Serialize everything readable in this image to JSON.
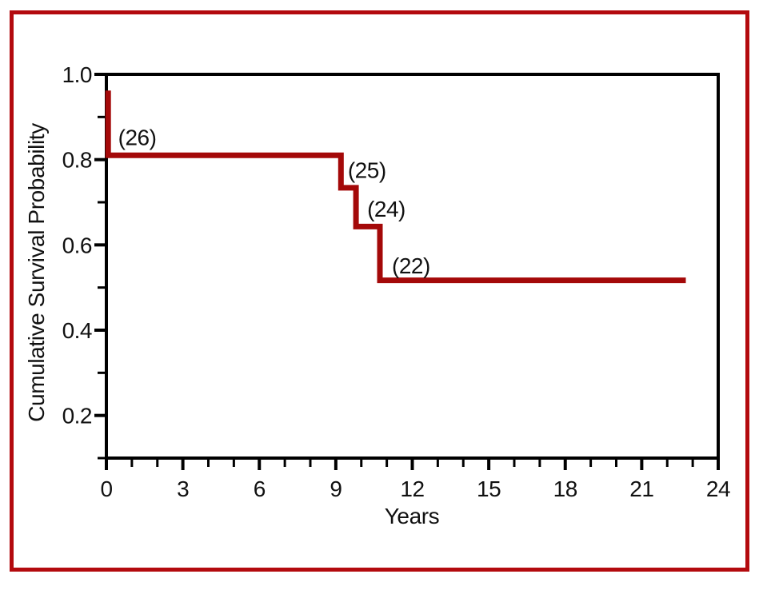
{
  "figure": {
    "background": "#ffffff",
    "border_color": "#b30a0e"
  },
  "chart_data": {
    "type": "line",
    "style": "kaplan-meier-step",
    "title": "",
    "xlabel": "Years",
    "ylabel": "Cumulative Survival Probability",
    "xlim": [
      0,
      24
    ],
    "ylim": [
      0.1,
      1.0
    ],
    "x_ticks_major": [
      0,
      3,
      6,
      9,
      12,
      15,
      18,
      21,
      24
    ],
    "x_ticks_minor": [
      1,
      2,
      4,
      5,
      7,
      8,
      10,
      11,
      13,
      14,
      16,
      17,
      19,
      20,
      22,
      23
    ],
    "y_ticks_major": [
      {
        "value": 1.0,
        "label": "1.0"
      },
      {
        "value": 0.8,
        "label": "0.8"
      },
      {
        "value": 0.6,
        "label": "0.6"
      },
      {
        "value": 0.4,
        "label": "0.4"
      },
      {
        "value": 0.2,
        "label": "0.2"
      }
    ],
    "y_ticks_minor": [
      0.9,
      0.7,
      0.5,
      0.3,
      0.1
    ],
    "grid": false,
    "legend": false,
    "axis_color": "#000000",
    "series": [
      {
        "name": "Cumulative survival",
        "color": "#a40909",
        "points": [
          [
            0.07,
            0.962
          ],
          [
            0.07,
            0.81
          ],
          [
            9.2,
            0.81
          ],
          [
            9.2,
            0.734
          ],
          [
            9.79,
            0.734
          ],
          [
            9.79,
            0.643
          ],
          [
            10.73,
            0.643
          ],
          [
            10.73,
            0.517
          ],
          [
            22.73,
            0.517
          ]
        ]
      }
    ],
    "annotations": [
      {
        "label": "(26)",
        "x": 1.21,
        "y": 0.853
      },
      {
        "label": "(25)",
        "x": 10.22,
        "y": 0.776
      },
      {
        "label": "(24)",
        "x": 10.98,
        "y": 0.685
      },
      {
        "label": "(22)",
        "x": 11.95,
        "y": 0.552
      }
    ]
  }
}
